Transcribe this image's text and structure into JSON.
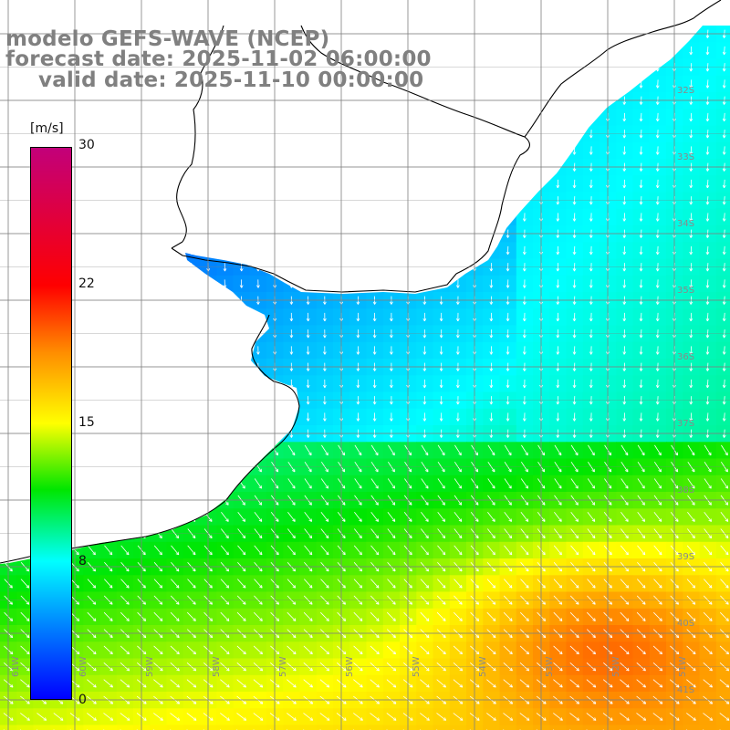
{
  "title": {
    "line1": "modelo GEFS-WAVE (NCEP)",
    "line2": "forecast date: 2025-11-02 06:00:00",
    "line3": "valid date: 2025-11-10 00:00:00"
  },
  "colorbar": {
    "unit": "[m/s]",
    "ticks": [
      "30",
      "22",
      "15",
      "8",
      "0"
    ],
    "range": [
      0,
      30
    ],
    "colors": [
      "#0000ff",
      "#0080ff",
      "#00ffff",
      "#00e600",
      "#ffff00",
      "#ff8c00",
      "#ff0000",
      "#c2007a"
    ]
  },
  "map": {
    "lat_labels": [
      "32S",
      "33S",
      "34S",
      "35S",
      "36S",
      "37S",
      "38S",
      "39S",
      "40S",
      "41S"
    ],
    "lon_labels": [
      "61W",
      "60W",
      "59W",
      "58W",
      "57W",
      "56W",
      "55W",
      "54W",
      "53W",
      "52W",
      "51W"
    ],
    "land_color": "#ffffff",
    "grid_color": "#808080",
    "arrow_color": "#ffffff"
  }
}
